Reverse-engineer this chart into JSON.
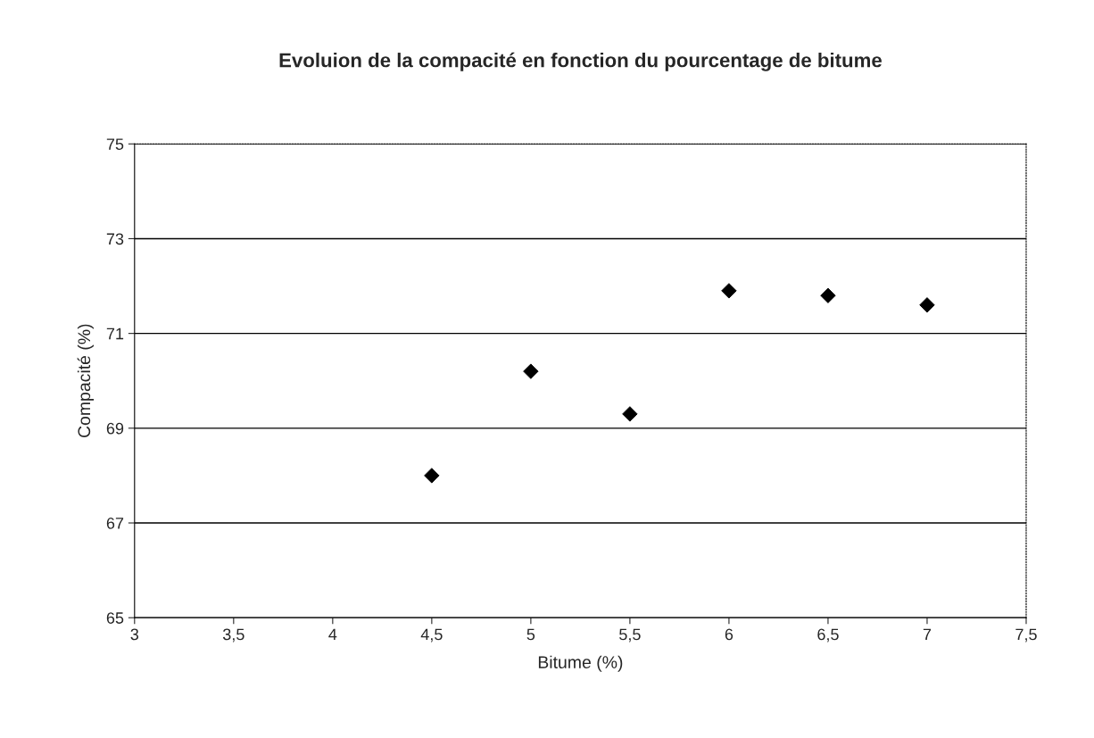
{
  "chart_data": {
    "type": "scatter",
    "title": "Evoluion de la compacité en fonction du pourcentage de bitume",
    "xlabel": "Bitume (%)",
    "ylabel": "Compacité (%)",
    "x": [
      4.5,
      5,
      5.5,
      6,
      6.5,
      7
    ],
    "series": [
      {
        "color": "#000000",
        "values": [
          68.0,
          70.2,
          69.3,
          71.9,
          71.8,
          71.6
        ]
      }
    ],
    "marker": "diamond",
    "grid": "y",
    "xlim": [
      3,
      7.5
    ],
    "xticks": [
      3,
      {
        "value": 3.5,
        "label": "3,5"
      },
      4,
      {
        "value": 4.5,
        "label": "4,5"
      },
      5,
      {
        "value": 5.5,
        "label": "5,5"
      },
      6,
      {
        "value": 6.5,
        "label": "6,5"
      },
      7,
      {
        "value": 7.5,
        "label": "7,5"
      }
    ],
    "ylim": [
      65,
      75
    ],
    "yticks": [
      65,
      67,
      69,
      71,
      73,
      75
    ]
  }
}
